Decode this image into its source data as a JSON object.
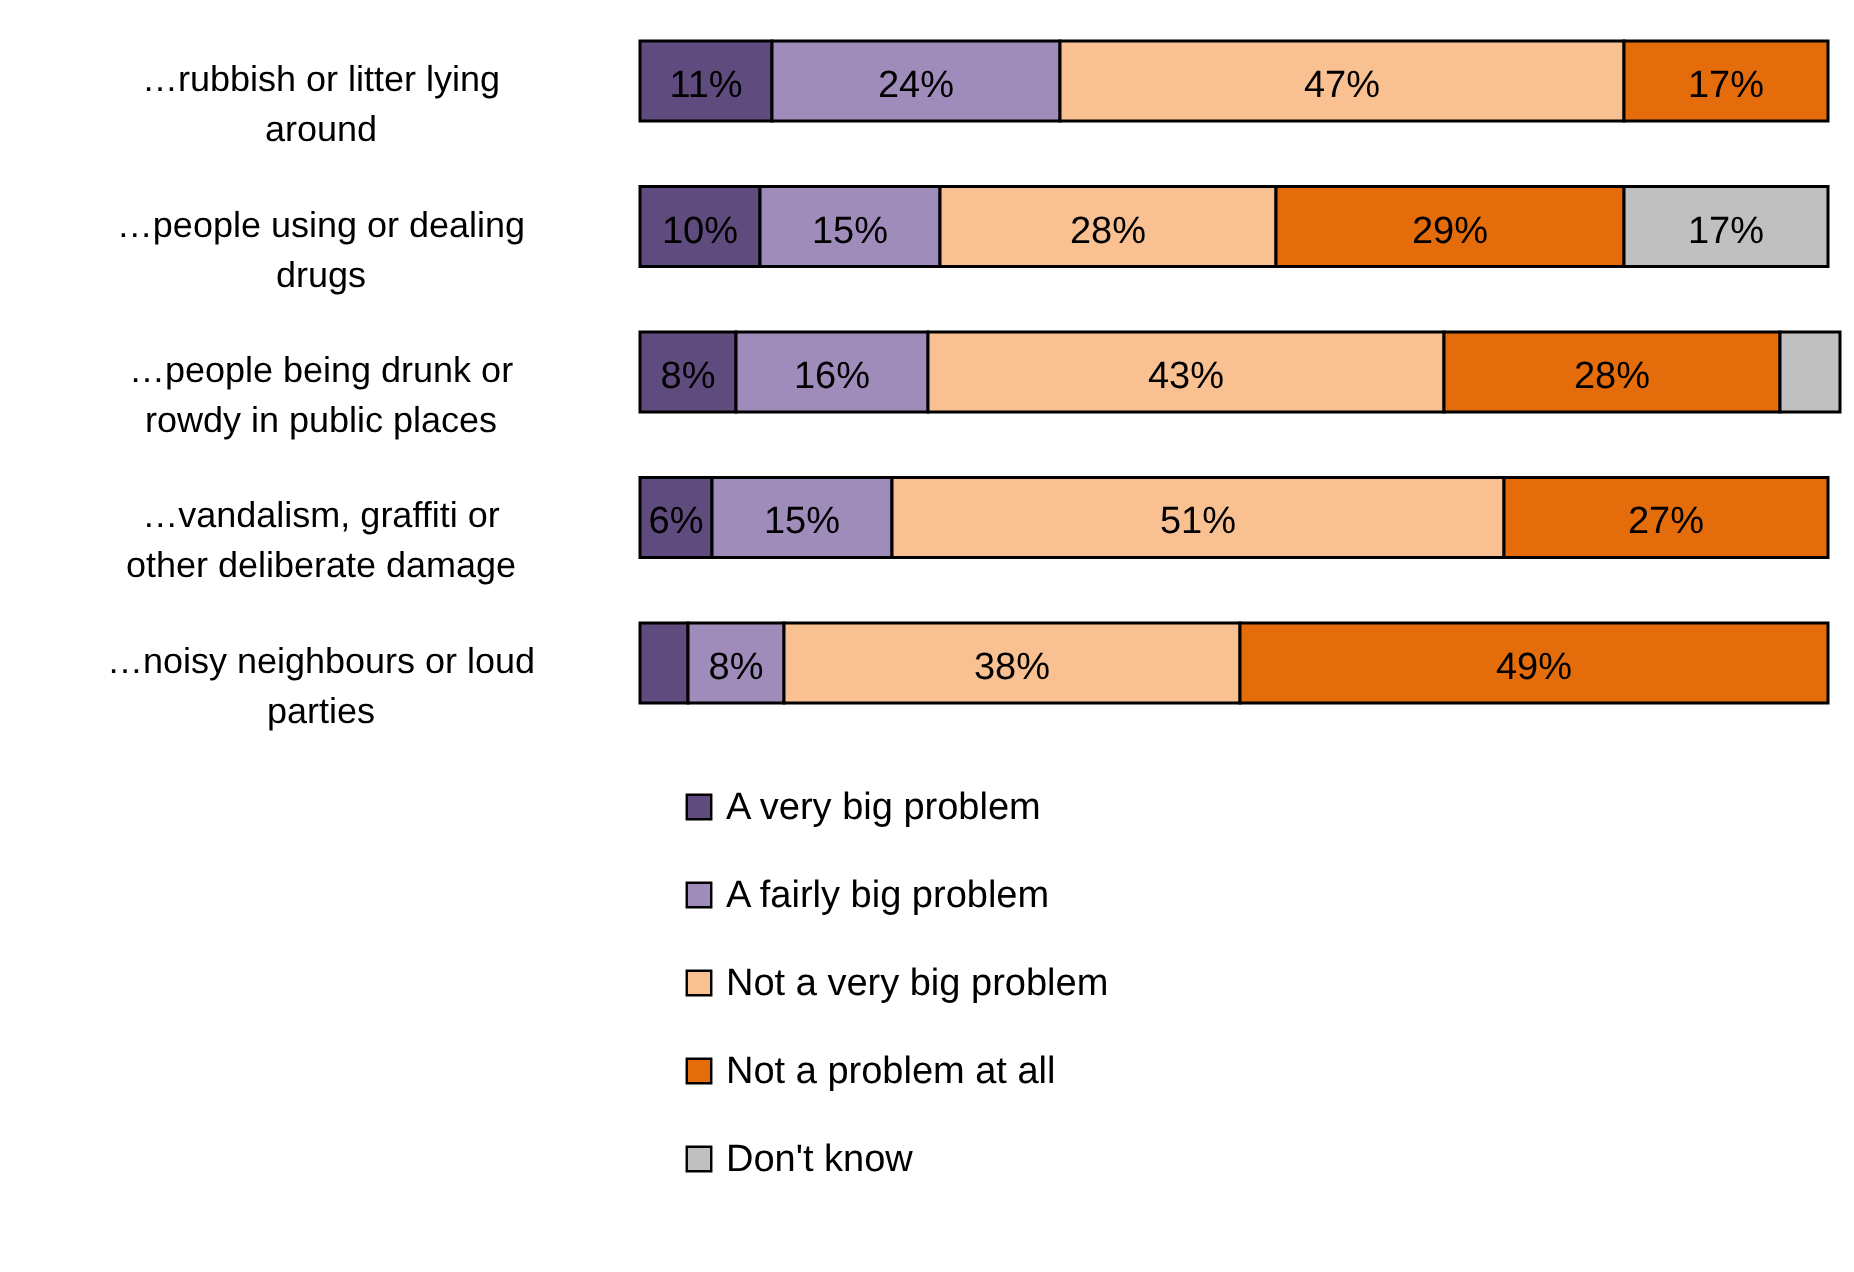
{
  "chart_data": {
    "type": "bar",
    "orientation": "horizontal",
    "stacked": true,
    "legend": "bottom",
    "categories": [
      "…rubbish or litter lying around",
      "…people using or dealing drugs",
      "…people being drunk or rowdy in public places",
      "…vandalism, graffiti or other deliberate damage",
      "…noisy neighbours or loud parties"
    ],
    "series": [
      {
        "name": "A very big problem",
        "color": "#5f4b7d",
        "values": [
          11,
          10,
          8,
          6,
          4
        ],
        "value_labels": [
          "11%",
          "10%",
          "8%",
          "6%",
          null
        ]
      },
      {
        "name": "A fairly big problem",
        "color": "#a08cbb",
        "values": [
          24,
          15,
          16,
          15,
          8
        ],
        "value_labels": [
          "24%",
          "15%",
          "16%",
          "15%",
          "8%"
        ]
      },
      {
        "name": "Not a very big problem",
        "color": "#f9c091",
        "values": [
          47,
          28,
          43,
          51,
          38
        ],
        "value_labels": [
          "47%",
          "28%",
          "43%",
          "51%",
          "38%"
        ]
      },
      {
        "name": "Not a problem at all",
        "color": "#e46c0a",
        "values": [
          17,
          29,
          28,
          27,
          49
        ],
        "value_labels": [
          "17%",
          "29%",
          "28%",
          "27%",
          "49%"
        ]
      },
      {
        "name": "Don't know",
        "color": "#c0c0c0",
        "values": [
          null,
          17,
          5,
          null,
          null
        ],
        "value_labels": [
          null,
          "17%",
          null,
          null,
          null
        ]
      }
    ]
  }
}
